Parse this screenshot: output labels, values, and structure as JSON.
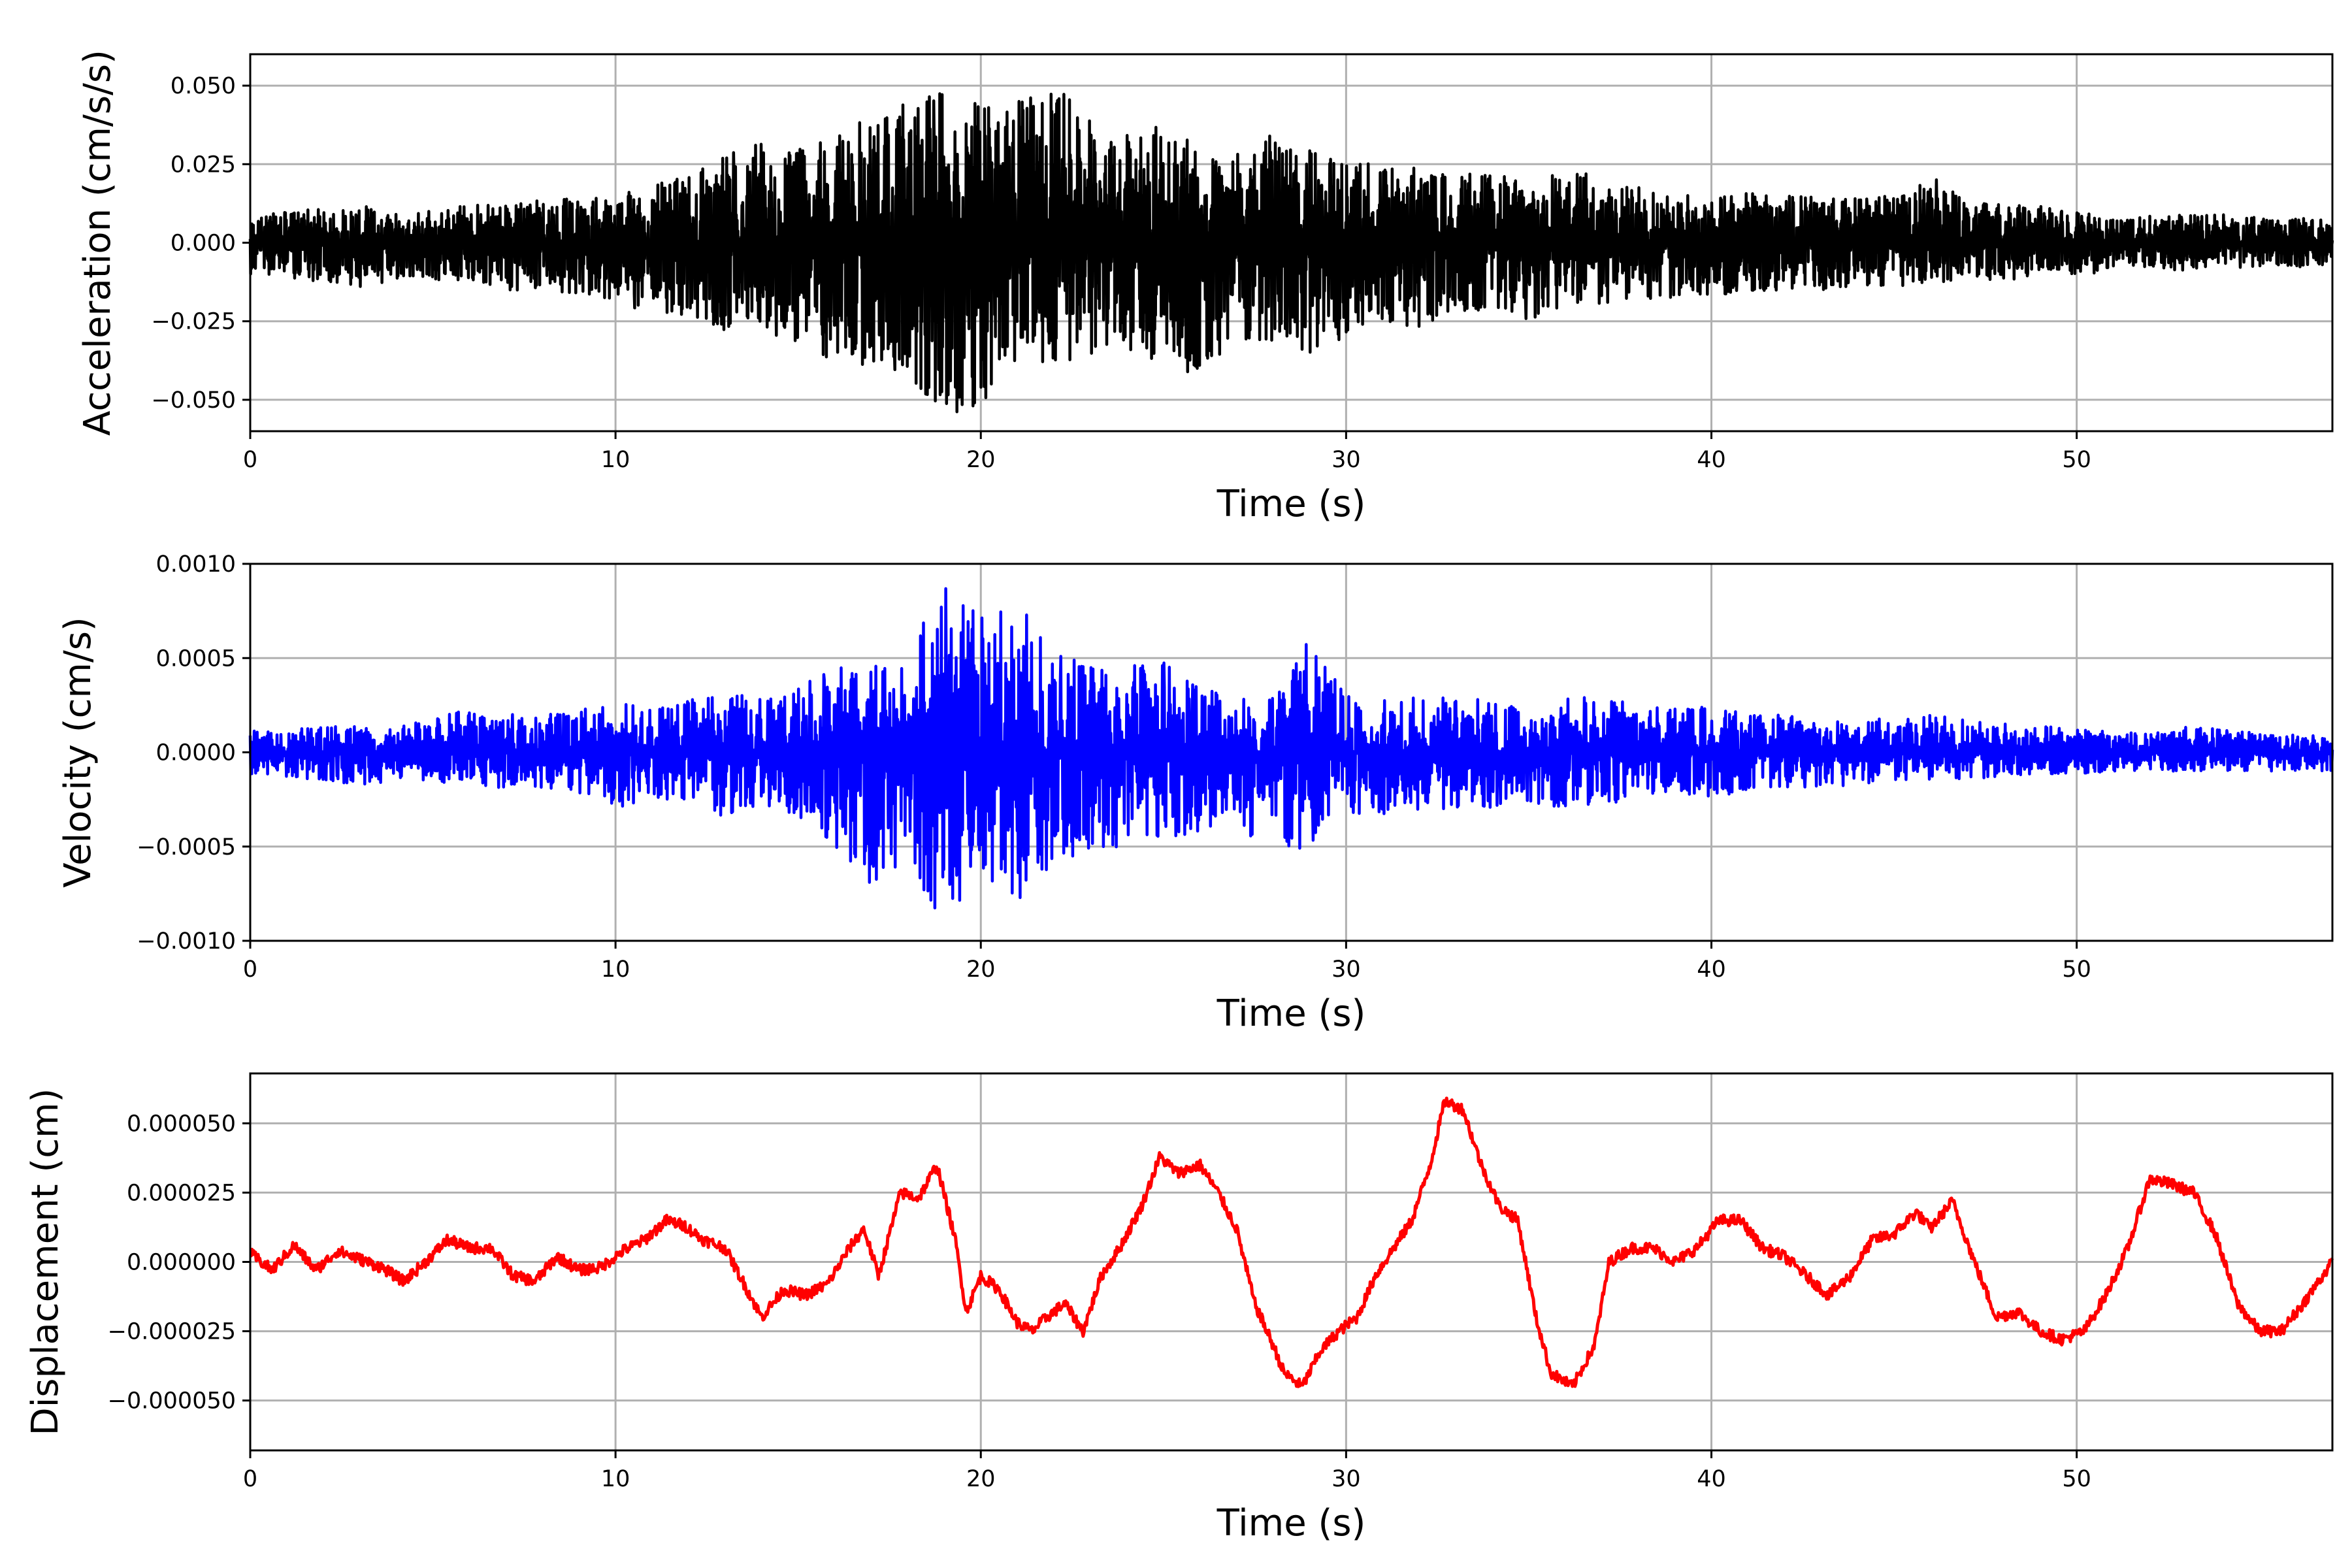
{
  "chart_data": [
    {
      "type": "line",
      "xlabel": "Time (s)",
      "ylabel": "Acceleration (cm/s/s)",
      "xlim": [
        0,
        57
      ],
      "ylim": [
        -0.06,
        0.06
      ],
      "x_ticks": [
        0,
        10,
        20,
        30,
        40,
        50
      ],
      "x_tick_labels": [
        "0",
        "10",
        "20",
        "30",
        "40",
        "50"
      ],
      "y_ticks": [
        -0.05,
        -0.025,
        0,
        0.025,
        0.05
      ],
      "y_tick_labels": [
        "−0.050",
        "−0.025",
        "0.000",
        "0.025",
        "0.050"
      ],
      "grid": true,
      "color": "#000000",
      "series": [
        {
          "x": [
            0,
            1,
            2,
            3,
            4,
            5,
            6,
            7,
            8,
            9,
            10,
            11,
            12,
            13,
            14,
            15,
            16,
            17,
            18,
            19,
            20,
            21,
            22,
            23,
            24,
            25,
            26,
            27,
            28,
            29,
            30,
            31,
            32,
            33,
            34,
            35,
            36,
            37,
            38,
            39,
            40,
            41,
            42,
            43,
            44,
            45,
            46,
            47,
            48,
            49,
            50,
            51,
            52,
            53,
            54,
            55,
            56,
            57
          ],
          "env_upper": [
            0.008,
            0.01,
            0.011,
            0.012,
            0.01,
            0.01,
            0.013,
            0.012,
            0.014,
            0.014,
            0.015,
            0.018,
            0.022,
            0.028,
            0.033,
            0.03,
            0.035,
            0.04,
            0.045,
            0.048,
            0.047,
            0.045,
            0.05,
            0.04,
            0.035,
            0.038,
            0.03,
            0.028,
            0.035,
            0.03,
            0.026,
            0.025,
            0.024,
            0.022,
            0.022,
            0.02,
            0.028,
            0.018,
            0.018,
            0.015,
            0.015,
            0.016,
            0.016,
            0.015,
            0.014,
            0.015,
            0.022,
            0.013,
            0.012,
            0.012,
            0.01,
            0.008,
            0.009,
            0.009,
            0.009,
            0.008,
            0.008,
            0.007
          ],
          "env_lower": [
            -0.01,
            -0.011,
            -0.013,
            -0.014,
            -0.013,
            -0.012,
            -0.014,
            -0.015,
            -0.016,
            -0.017,
            -0.02,
            -0.022,
            -0.023,
            -0.028,
            -0.028,
            -0.032,
            -0.038,
            -0.04,
            -0.045,
            -0.055,
            -0.053,
            -0.043,
            -0.043,
            -0.036,
            -0.035,
            -0.04,
            -0.042,
            -0.03,
            -0.033,
            -0.035,
            -0.03,
            -0.025,
            -0.028,
            -0.022,
            -0.022,
            -0.025,
            -0.02,
            -0.02,
            -0.018,
            -0.018,
            -0.018,
            -0.016,
            -0.015,
            -0.015,
            -0.014,
            -0.014,
            -0.013,
            -0.012,
            -0.012,
            -0.011,
            -0.01,
            -0.01,
            -0.009,
            -0.009,
            -0.008,
            -0.008,
            -0.008,
            -0.007
          ]
        }
      ]
    },
    {
      "type": "line",
      "xlabel": "Time (s)",
      "ylabel": "Velocity (cm/s)",
      "xlim": [
        0,
        57
      ],
      "ylim": [
        -0.001,
        0.001
      ],
      "x_ticks": [
        0,
        10,
        20,
        30,
        40,
        50
      ],
      "x_tick_labels": [
        "0",
        "10",
        "20",
        "30",
        "40",
        "50"
      ],
      "y_ticks": [
        -0.001,
        -0.0005,
        0,
        0.0005,
        0.001
      ],
      "y_tick_labels": [
        "−0.0010",
        "−0.0005",
        "0.0000",
        "0.0005",
        "0.0010"
      ],
      "grid": true,
      "color": "#0000ff",
      "series": [
        {
          "x": [
            0,
            1,
            2,
            3,
            4,
            5,
            6,
            7,
            8,
            9,
            10,
            11,
            12,
            13,
            14,
            15,
            16,
            17,
            18,
            19,
            20,
            21,
            22,
            23,
            24,
            25,
            26,
            27,
            28,
            29,
            30,
            31,
            32,
            33,
            34,
            35,
            36,
            37,
            38,
            39,
            40,
            41,
            42,
            43,
            44,
            45,
            46,
            47,
            48,
            49,
            50,
            51,
            52,
            53,
            54,
            55,
            56,
            57
          ],
          "env_upper": [
            0.00012,
            0.00013,
            0.00014,
            0.00015,
            0.00015,
            0.00018,
            0.00026,
            0.0002,
            0.0002,
            0.00022,
            0.00028,
            0.00022,
            0.00028,
            0.0003,
            0.00032,
            0.00035,
            0.00048,
            0.00045,
            0.0006,
            0.00088,
            0.00072,
            0.0008,
            0.00055,
            0.00045,
            0.00045,
            0.0005,
            0.00035,
            0.00032,
            0.0003,
            0.0006,
            0.0003,
            0.0003,
            0.0003,
            0.0003,
            0.0003,
            0.0002,
            0.0003,
            0.0003,
            0.00025,
            0.00025,
            0.00025,
            0.0002,
            0.0002,
            0.0002,
            0.00018,
            0.00018,
            0.0002,
            0.00018,
            0.00015,
            0.00015,
            0.00012,
            0.00012,
            0.0001,
            0.00014,
            0.00012,
            0.0001,
            0.0001,
            8e-05
          ],
          "env_lower": [
            -0.00012,
            -0.00014,
            -0.00015,
            -0.00018,
            -0.00015,
            -0.00016,
            -0.00018,
            -0.0002,
            -0.0002,
            -0.00022,
            -0.0003,
            -0.00025,
            -0.00025,
            -0.00035,
            -0.0003,
            -0.00035,
            -0.0005,
            -0.0007,
            -0.0006,
            -0.00092,
            -0.00065,
            -0.0008,
            -0.0006,
            -0.00055,
            -0.0005,
            -0.00045,
            -0.00045,
            -0.0004,
            -0.00055,
            -0.0005,
            -0.00032,
            -0.00035,
            -0.0003,
            -0.0003,
            -0.0003,
            -0.00028,
            -0.0003,
            -0.0003,
            -0.00025,
            -0.00022,
            -0.00025,
            -0.0002,
            -0.0002,
            -0.00018,
            -0.00018,
            -0.00015,
            -0.00015,
            -0.00014,
            -0.00014,
            -0.00012,
            -0.00012,
            -0.0001,
            -0.0001,
            -0.0001,
            -0.0001,
            -0.0001,
            -0.0001,
            -0.0001
          ]
        }
      ]
    },
    {
      "type": "line",
      "xlabel": "Time (s)",
      "ylabel": "Displacement (cm)",
      "xlim": [
        0,
        57
      ],
      "ylim": [
        -6.8e-05,
        6.8e-05
      ],
      "x_ticks": [
        0,
        10,
        20,
        30,
        40,
        50
      ],
      "x_tick_labels": [
        "0",
        "10",
        "20",
        "30",
        "40",
        "50"
      ],
      "y_ticks": [
        -5e-05,
        -2.5e-05,
        0,
        2.5e-05,
        5e-05
      ],
      "y_tick_labels": [
        "−0.000050",
        "−0.000025",
        "0.000000",
        "0.000025",
        "0.000050"
      ],
      "grid": true,
      "color": "#ff0000",
      "series": [
        {
          "x": [
            0,
            0.6,
            1.2,
            1.8,
            2.4,
            3.0,
            3.6,
            4.2,
            4.8,
            5.4,
            6.0,
            6.6,
            7.2,
            7.8,
            8.4,
            9.0,
            9.6,
            10.2,
            10.8,
            11.4,
            11.9,
            12.4,
            13.0,
            13.6,
            14.0,
            14.6,
            15.2,
            15.8,
            16.4,
            16.8,
            17.2,
            17.8,
            18.3,
            18.8,
            19.3,
            19.6,
            20.0,
            20.5,
            21.0,
            21.4,
            21.8,
            22.3,
            22.8,
            23.3,
            23.8,
            24.4,
            24.9,
            25.4,
            26.0,
            26.5,
            27.0,
            27.5,
            28.0,
            28.3,
            28.8,
            29.3,
            29.8,
            30.3,
            30.8,
            31.3,
            31.8,
            32.3,
            32.7,
            33.2,
            33.7,
            34.2,
            34.7,
            35.2,
            35.6,
            36.2,
            36.8,
            37.2,
            37.8,
            38.4,
            39.0,
            39.6,
            40.2,
            40.8,
            41.4,
            42.0,
            42.6,
            43.2,
            43.8,
            44.4,
            45.0,
            45.6,
            46.0,
            46.6,
            47.2,
            47.8,
            48.4,
            49.0,
            49.6,
            50.2,
            50.8,
            51.4,
            52.0,
            52.6,
            53.2,
            53.8,
            54.4,
            55.0,
            55.6,
            56.2,
            57.0
          ],
          "y": [
            3e-06,
            -3e-06,
            6e-06,
            -3e-06,
            4e-06,
            1e-06,
            -2e-06,
            -7e-06,
            0,
            8e-06,
            5e-06,
            5e-06,
            -5e-06,
            -7e-06,
            2e-06,
            -3e-06,
            -2e-06,
            4e-06,
            8e-06,
            1.5e-05,
            1.3e-05,
            8e-06,
            5e-06,
            -1e-05,
            -2e-05,
            -1e-05,
            -1.2e-05,
            -8e-06,
            5e-06,
            1.2e-05,
            -5e-06,
            2.5e-05,
            2.3e-05,
            3.5e-05,
            8e-06,
            -1.8e-05,
            -5e-06,
            -1e-05,
            -2.2e-05,
            -2.5e-05,
            -2e-05,
            -1.5e-05,
            -2.5e-05,
            -5e-06,
            5e-06,
            2e-05,
            3.8e-05,
            3.2e-05,
            3.5e-05,
            2.5e-05,
            1.2e-05,
            -1.5e-05,
            -3e-05,
            -4e-05,
            -4.5e-05,
            -3.2e-05,
            -2.5e-05,
            -2e-05,
            -5e-06,
            5e-06,
            1.5e-05,
            3.5e-05,
            5.8e-05,
            5.5e-05,
            3.5e-05,
            2e-05,
            1.5e-05,
            -2e-05,
            -4e-05,
            -4.5e-05,
            -3e-05,
            0,
            5e-06,
            5e-06,
            0,
            5e-06,
            1.5e-05,
            1.5e-05,
            5e-06,
            2e-06,
            -5e-06,
            -1.2e-05,
            -5e-06,
            8e-06,
            1e-05,
            1.8e-05,
            1.2e-05,
            2.2e-05,
            0,
            -2e-05,
            -1.8e-05,
            -2.5e-05,
            -2.8e-05,
            -2.5e-05,
            -1.2e-05,
            5e-06,
            3e-05,
            2.8e-05,
            2.5e-05,
            1e-05,
            -1.5e-05,
            -2.5e-05,
            -2.5e-05,
            -1.5e-05,
            0
          ]
        }
      ]
    }
  ]
}
